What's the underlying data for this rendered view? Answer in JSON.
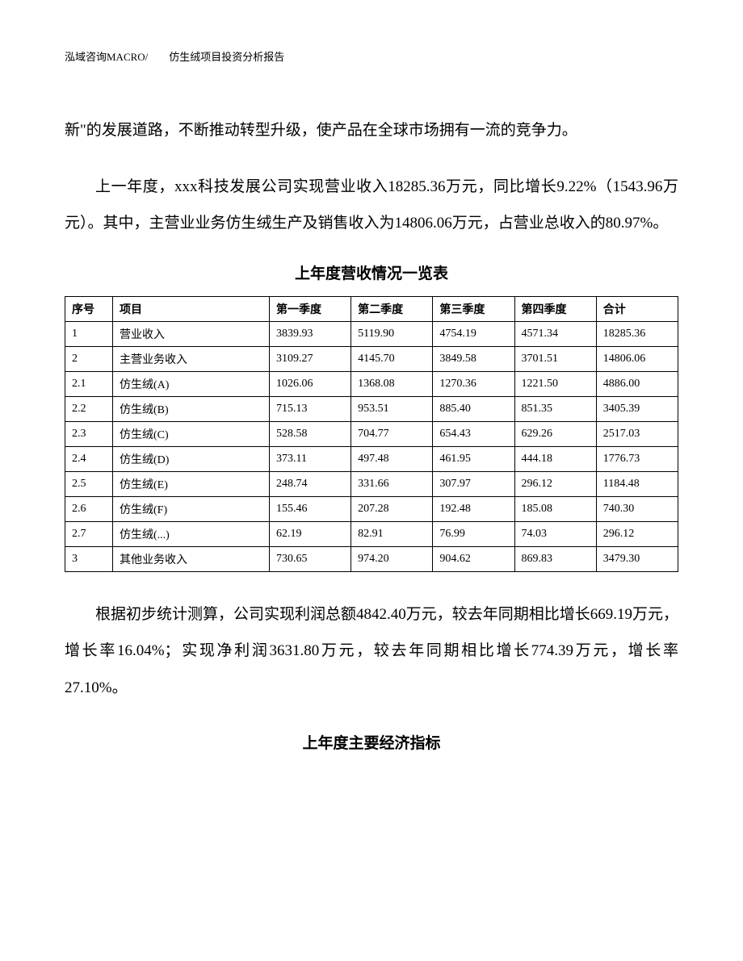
{
  "header": {
    "text": "泓域咨询MACRO/　　仿生绒项目投资分析报告"
  },
  "paragraphs": {
    "p1": "新\"的发展道路，不断推动转型升级，使产品在全球市场拥有一流的竞争力。",
    "p2": "上一年度，xxx科技发展公司实现营业收入18285.36万元，同比增长9.22%（1543.96万元）。其中，主营业业务仿生绒生产及销售收入为14806.06万元，占营业总收入的80.97%。",
    "p3": "根据初步统计测算，公司实现利润总额4842.40万元，较去年同期相比增长669.19万元，增长率16.04%；实现净利润3631.80万元，较去年同期相比增长774.39万元，增长率27.10%。"
  },
  "table1": {
    "title": "上年度营收情况一览表",
    "headers": {
      "seq": "序号",
      "item": "项目",
      "q1": "第一季度",
      "q2": "第二季度",
      "q3": "第三季度",
      "q4": "第四季度",
      "total": "合计"
    },
    "rows": [
      {
        "seq": "1",
        "item": "营业收入",
        "q1": "3839.93",
        "q2": "5119.90",
        "q3": "4754.19",
        "q4": "4571.34",
        "total": "18285.36"
      },
      {
        "seq": "2",
        "item": "主营业务收入",
        "q1": "3109.27",
        "q2": "4145.70",
        "q3": "3849.58",
        "q4": "3701.51",
        "total": "14806.06"
      },
      {
        "seq": "2.1",
        "item": "仿生绒(A)",
        "q1": "1026.06",
        "q2": "1368.08",
        "q3": "1270.36",
        "q4": "1221.50",
        "total": "4886.00"
      },
      {
        "seq": "2.2",
        "item": "仿生绒(B)",
        "q1": "715.13",
        "q2": "953.51",
        "q3": "885.40",
        "q4": "851.35",
        "total": "3405.39"
      },
      {
        "seq": "2.3",
        "item": "仿生绒(C)",
        "q1": "528.58",
        "q2": "704.77",
        "q3": "654.43",
        "q4": "629.26",
        "total": "2517.03"
      },
      {
        "seq": "2.4",
        "item": "仿生绒(D)",
        "q1": "373.11",
        "q2": "497.48",
        "q3": "461.95",
        "q4": "444.18",
        "total": "1776.73"
      },
      {
        "seq": "2.5",
        "item": "仿生绒(E)",
        "q1": "248.74",
        "q2": "331.66",
        "q3": "307.97",
        "q4": "296.12",
        "total": "1184.48"
      },
      {
        "seq": "2.6",
        "item": "仿生绒(F)",
        "q1": "155.46",
        "q2": "207.28",
        "q3": "192.48",
        "q4": "185.08",
        "total": "740.30"
      },
      {
        "seq": "2.7",
        "item": "仿生绒(...)",
        "q1": "62.19",
        "q2": "82.91",
        "q3": "76.99",
        "q4": "74.03",
        "total": "296.12"
      },
      {
        "seq": "3",
        "item": "其他业务收入",
        "q1": "730.65",
        "q2": "974.20",
        "q3": "904.62",
        "q4": "869.83",
        "total": "3479.30"
      }
    ]
  },
  "section2": {
    "title": "上年度主要经济指标"
  }
}
